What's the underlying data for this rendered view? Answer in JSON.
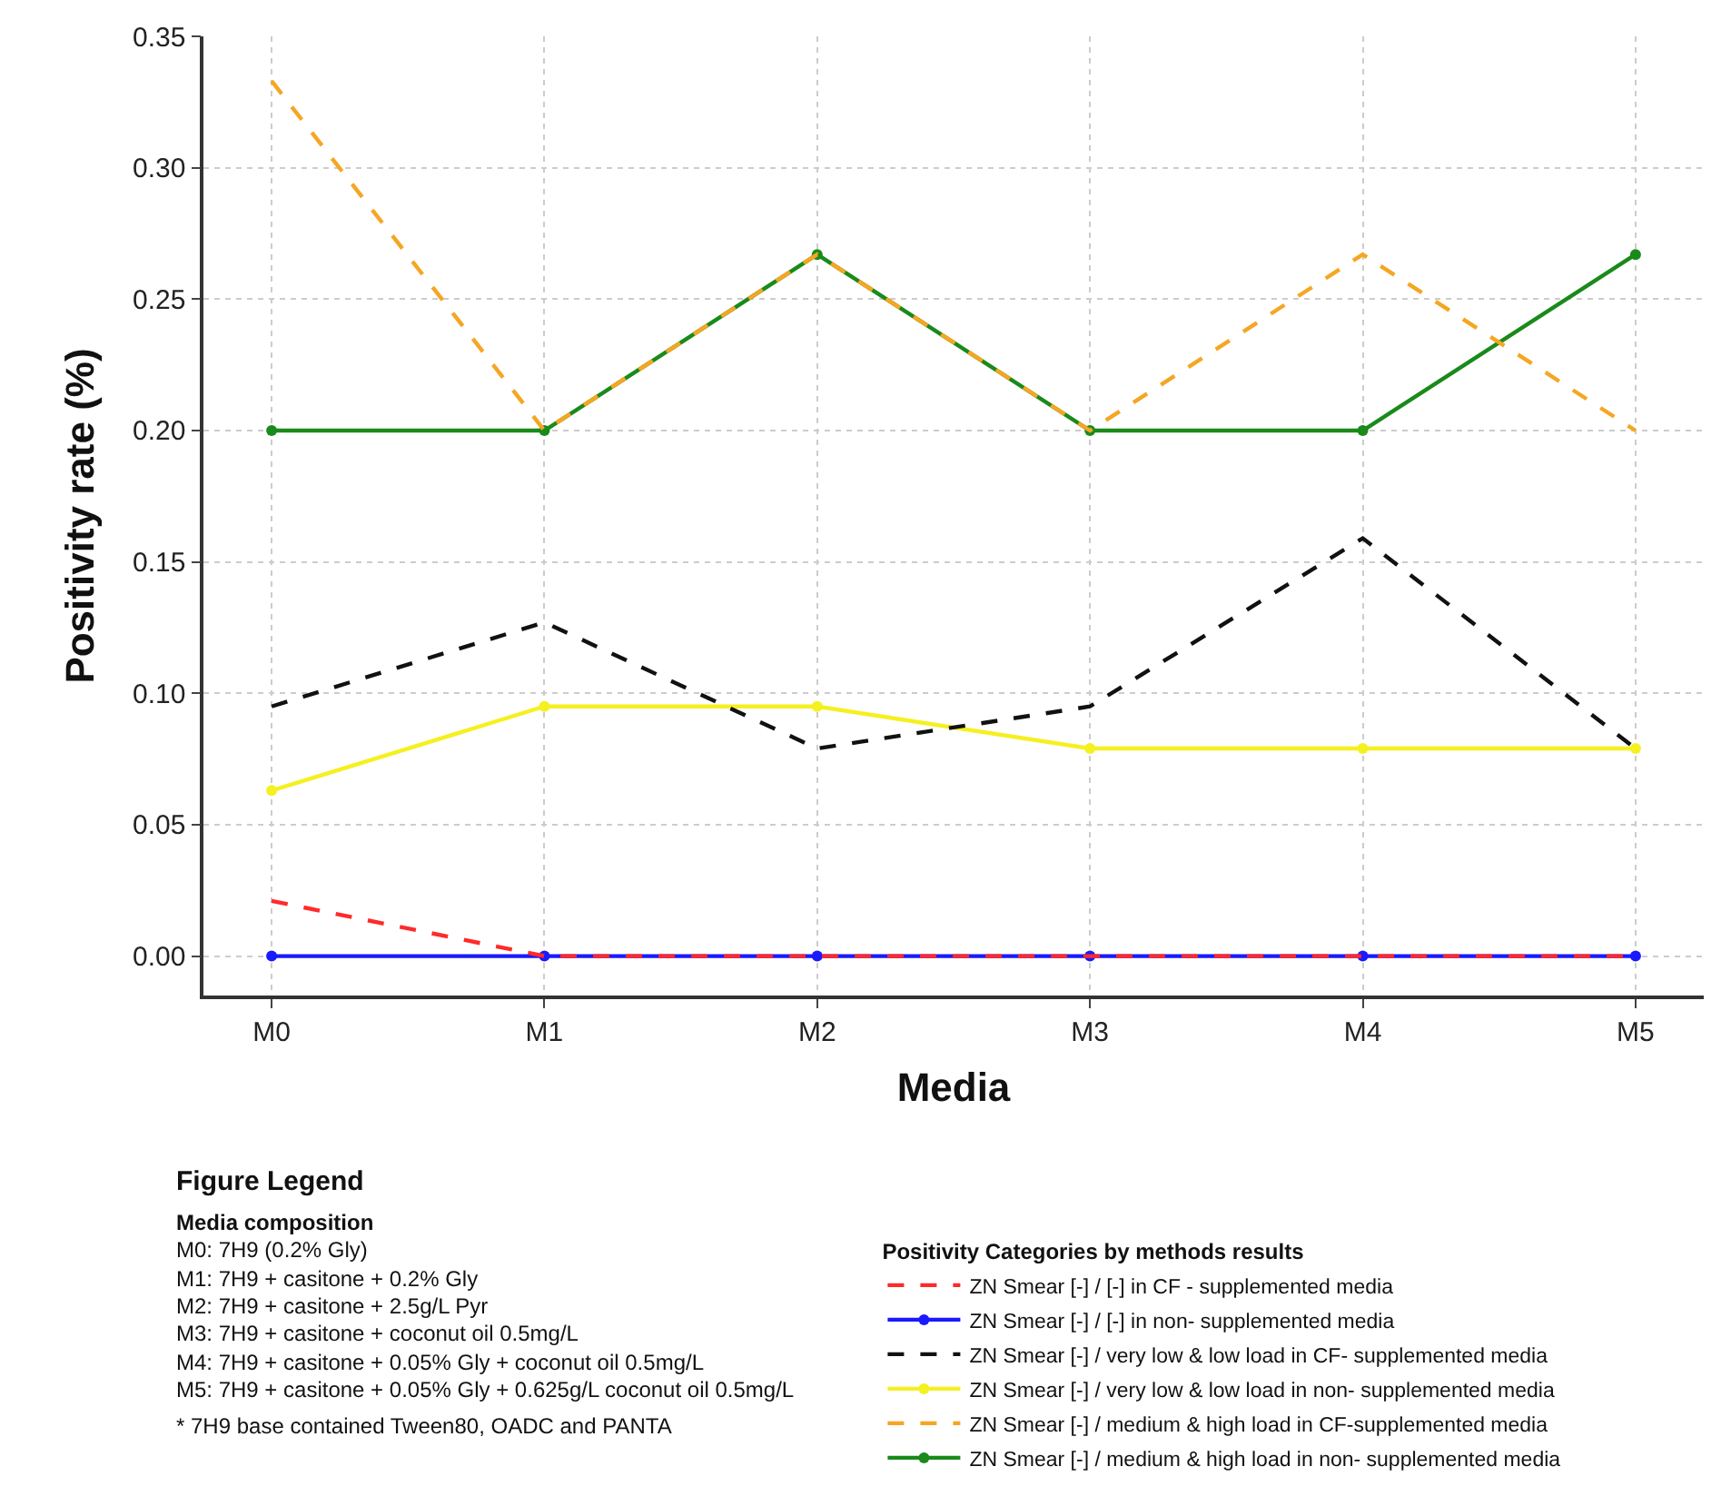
{
  "chart_data": {
    "type": "line",
    "xlabel": "Media",
    "ylabel": "Positivity rate (%)",
    "legend_title": "Positivity Categories by methods results",
    "categories": [
      "M0",
      "M1",
      "M2",
      "M3",
      "M4",
      "M5"
    ],
    "ylim": [
      -0.015,
      0.35
    ],
    "yticks": [
      {
        "value": 0,
        "label": "0.00"
      },
      {
        "value": 0.05,
        "label": "0.05"
      },
      {
        "value": 0.1,
        "label": "0.10"
      },
      {
        "value": 0.15,
        "label": "0.15"
      },
      {
        "value": 0.2,
        "label": "0.20"
      },
      {
        "value": 0.25,
        "label": "0.25"
      },
      {
        "value": 0.3,
        "label": "0.30"
      },
      {
        "value": 0.35,
        "label": "0.35"
      }
    ],
    "grid": true,
    "legend": "bottom",
    "series": [
      {
        "name": "ZN Smear [-] / [-] in CF - supplemented media",
        "color": "#ff2a2a",
        "line_style": "dashed",
        "marker": "none",
        "values": [
          0.021,
          0,
          0,
          0,
          0,
          0
        ]
      },
      {
        "name": "ZN Smear [-] / [-] in non- supplemented media",
        "color": "#1a1aff",
        "line_style": "solid",
        "marker": "circle",
        "values": [
          0,
          0,
          0,
          0,
          0,
          0
        ]
      },
      {
        "name": "ZN Smear [-] / very low & low load in CF- supplemented media",
        "color": "#111111",
        "line_style": "dashed",
        "marker": "none",
        "values": [
          0.095,
          0.127,
          0.079,
          0.095,
          0.159,
          0.079
        ]
      },
      {
        "name": "ZN Smear [-] / very low & low load in non- supplemented media",
        "color": "#f5f020",
        "line_style": "solid",
        "marker": "circle",
        "values": [
          0.063,
          0.095,
          0.095,
          0.079,
          0.079,
          0.079
        ]
      },
      {
        "name": "ZN Smear [-] / medium & high load in CF-supplemented media",
        "color": "#f5a623",
        "line_style": "dashed",
        "marker": "none",
        "values": [
          0.333,
          0.2,
          0.267,
          0.2,
          0.267,
          0.2
        ]
      },
      {
        "name": "ZN Smear [-] / medium & high load in non- supplemented media",
        "color": "#1a8a1a",
        "line_style": "solid",
        "marker": "circle",
        "values": [
          0.2,
          0.2,
          0.267,
          0.2,
          0.2,
          0.267
        ]
      }
    ],
    "annotations": [
      "Figure Legend",
      "Media composition",
      "M0: 7H9 (0.2% Gly)",
      "M1: 7H9 + casitone + 0.2% Gly",
      "M2: 7H9 + casitone + 2.5g/L Pyr",
      "M3: 7H9 + casitone + coconut oil 0.5mg/L",
      "M4: 7H9 + casitone + 0.05% Gly + coconut oil 0.5mg/L",
      "M5: 7H9 + casitone + 0.05% Gly + 0.625g/L coconut oil 0.5mg/L",
      "* 7H9 base contained Tween80, OADC and PANTA"
    ]
  }
}
